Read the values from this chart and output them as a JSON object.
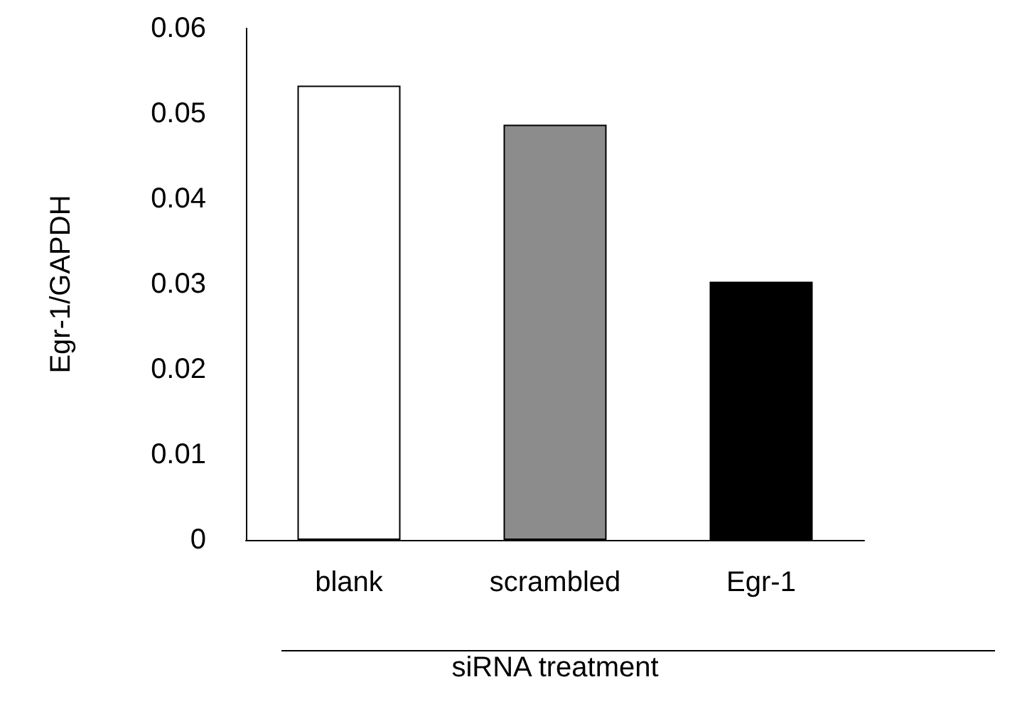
{
  "chart_data": {
    "type": "bar",
    "categories": [
      "blank",
      "scrambled",
      "Egr-1"
    ],
    "values": [
      0.0533,
      0.0487,
      0.0303
    ],
    "colors": [
      "#ffffff",
      "#8c8c8c",
      "#000000"
    ],
    "xlabel": "siRNA treatment",
    "ylabel": "Egr-1/GAPDH",
    "ylim": [
      0,
      0.06
    ],
    "yticks": [
      0,
      0.01,
      0.02,
      0.03,
      0.04,
      0.05,
      0.06
    ],
    "grid": false
  }
}
